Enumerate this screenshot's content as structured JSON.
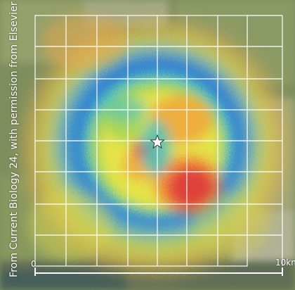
{
  "credit": "From Current Biology 24, with permission from Elsevier",
  "scale_bar": {
    "start_label": "0",
    "end_label": "10km"
  },
  "map": {
    "center_marker": "star-icon",
    "colors": {
      "red": "#e0423a",
      "orange": "#f2a23a",
      "yellow": "#e9e44a",
      "green": "#8ed05a",
      "cyan": "#42c2c8",
      "blue": "#2a6fd0",
      "land": "#9aa878",
      "grid": "#ffffff"
    }
  }
}
